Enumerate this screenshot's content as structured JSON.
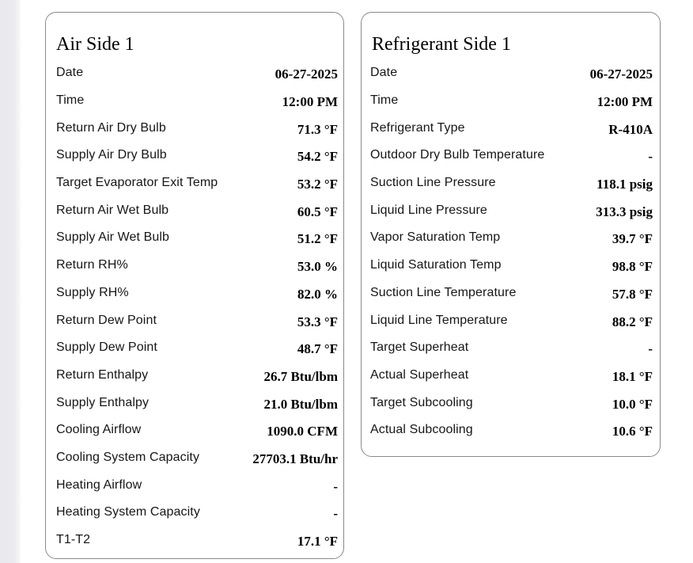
{
  "page": {
    "background_color": "#ffffff",
    "gutter_color": "#ebebee",
    "card_border_color": "#8a8a8e"
  },
  "cards": [
    {
      "title": "Air Side 1",
      "rows": [
        {
          "label": "Date",
          "value": "06-27-2025"
        },
        {
          "label": "Time",
          "value": "12:00 PM"
        },
        {
          "label": "Return Air Dry Bulb",
          "value": "71.3 °F"
        },
        {
          "label": "Supply Air Dry Bulb",
          "value": "54.2 °F"
        },
        {
          "label": "Target Evaporator Exit Temp",
          "value": "53.2 °F"
        },
        {
          "label": "Return Air Wet Bulb",
          "value": "60.5 °F"
        },
        {
          "label": "Supply Air Wet Bulb",
          "value": "51.2 °F"
        },
        {
          "label": "Return RH%",
          "value": "53.0 %"
        },
        {
          "label": "Supply RH%",
          "value": "82.0 %"
        },
        {
          "label": "Return Dew Point",
          "value": "53.3 °F"
        },
        {
          "label": "Supply Dew Point",
          "value": "48.7 °F"
        },
        {
          "label": "Return Enthalpy",
          "value": "26.7 Btu/lbm"
        },
        {
          "label": "Supply Enthalpy",
          "value": "21.0 Btu/lbm"
        },
        {
          "label": "Cooling Airflow",
          "value": "1090.0 CFM"
        },
        {
          "label": "Cooling System Capacity",
          "value": "27703.1 Btu/hr"
        },
        {
          "label": "Heating Airflow",
          "value": "-"
        },
        {
          "label": "Heating System Capacity",
          "value": "-"
        },
        {
          "label": "T1-T2",
          "value": "17.1 °F"
        }
      ]
    },
    {
      "title": "Refrigerant Side 1",
      "rows": [
        {
          "label": "Date",
          "value": "06-27-2025"
        },
        {
          "label": "Time",
          "value": "12:00 PM"
        },
        {
          "label": "Refrigerant Type",
          "value": "R-410A"
        },
        {
          "label": "Outdoor Dry Bulb Temperature",
          "value": "-"
        },
        {
          "label": "Suction Line Pressure",
          "value": "118.1 psig"
        },
        {
          "label": "Liquid Line Pressure",
          "value": "313.3 psig"
        },
        {
          "label": "Vapor Saturation Temp",
          "value": "39.7 °F"
        },
        {
          "label": "Liquid Saturation Temp",
          "value": "98.8 °F"
        },
        {
          "label": "Suction Line Temperature",
          "value": "57.8 °F"
        },
        {
          "label": "Liquid Line Temperature",
          "value": "88.2 °F"
        },
        {
          "label": "Target Superheat",
          "value": "-"
        },
        {
          "label": "Actual Superheat",
          "value": "18.1 °F"
        },
        {
          "label": "Target Subcooling",
          "value": "10.0 °F"
        },
        {
          "label": "Actual Subcooling",
          "value": "10.6 °F"
        }
      ]
    }
  ]
}
